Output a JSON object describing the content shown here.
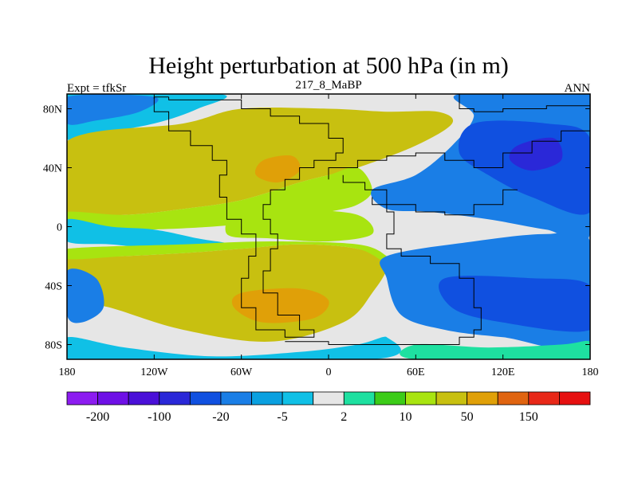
{
  "chart_data": {
    "type": "heatmap",
    "title": "Height perturbation at 500 hPa (in m)",
    "left_label": "Expt = tfkSr",
    "center_label": "217_8_MaBP",
    "right_label": "ANN",
    "x_ticks": [
      {
        "value": -180,
        "label": "180"
      },
      {
        "value": -120,
        "label": "120W"
      },
      {
        "value": -60,
        "label": "60W"
      },
      {
        "value": 0,
        "label": "0"
      },
      {
        "value": 60,
        "label": "60E"
      },
      {
        "value": 120,
        "label": "120E"
      },
      {
        "value": 180,
        "label": "180"
      }
    ],
    "y_ticks": [
      {
        "value": 80,
        "label": "80N"
      },
      {
        "value": 40,
        "label": "40N"
      },
      {
        "value": 0,
        "label": "0"
      },
      {
        "value": -40,
        "label": "40S"
      },
      {
        "value": -80,
        "label": "80S"
      }
    ],
    "xlim": [
      -180,
      180
    ],
    "ylim": [
      -90,
      90
    ],
    "colorbar": {
      "levels": [
        -200,
        -150,
        -100,
        -50,
        -20,
        -10,
        -5,
        -2,
        2,
        5,
        10,
        20,
        50,
        100,
        150,
        200
      ],
      "labeled": [
        {
          "index": 1,
          "label": "-200"
        },
        {
          "index": 3,
          "label": "-100"
        },
        {
          "index": 5,
          "label": "-20"
        },
        {
          "index": 7,
          "label": "-5"
        },
        {
          "index": 9,
          "label": "2"
        },
        {
          "index": 11,
          "label": "10"
        },
        {
          "index": 13,
          "label": "50"
        },
        {
          "index": 15,
          "label": "150"
        }
      ],
      "colors": [
        "#8c1cf0",
        "#6e10e6",
        "#4a10d8",
        "#2a28d8",
        "#1050e0",
        "#1a7ee6",
        "#0aa0e0",
        "#10c0e6",
        "#e6e6e6",
        "#1ee0a0",
        "#3ccc18",
        "#a8e410",
        "#c8c010",
        "#e0a008",
        "#e06410",
        "#e82818",
        "#e61010"
      ]
    },
    "regions": [
      {
        "name": "field-background",
        "color": "#e6e6e6",
        "points": [
          [
            -180,
            90
          ],
          [
            180,
            90
          ],
          [
            180,
            -90
          ],
          [
            -180,
            -90
          ]
        ]
      },
      {
        "name": "arctic-west-negative",
        "color": "#10c0e6",
        "points": [
          [
            -180,
            90
          ],
          [
            -75,
            90
          ],
          [
            -90,
            80
          ],
          [
            -120,
            70
          ],
          [
            -165,
            62
          ],
          [
            -180,
            60
          ]
        ]
      },
      {
        "name": "arctic-west-core",
        "color": "#1a7ee6",
        "points": [
          [
            -180,
            88
          ],
          [
            -120,
            88
          ],
          [
            -130,
            78
          ],
          [
            -160,
            72
          ],
          [
            -180,
            70
          ]
        ]
      },
      {
        "name": "west-pacific-low",
        "color": "#10c0e6",
        "points": [
          [
            -180,
            48
          ],
          [
            -150,
            45
          ],
          [
            -130,
            30
          ],
          [
            -145,
            22
          ],
          [
            -180,
            28
          ]
        ]
      },
      {
        "name": "west-pacific-low-core",
        "color": "#1050e0",
        "points": [
          [
            -180,
            40
          ],
          [
            -160,
            37
          ],
          [
            -150,
            28
          ],
          [
            -180,
            30
          ]
        ]
      },
      {
        "name": "north-high-band",
        "color": "#c8c010",
        "points": [
          [
            -180,
            58
          ],
          [
            -100,
            70
          ],
          [
            -60,
            80
          ],
          [
            0,
            80
          ],
          [
            40,
            78
          ],
          [
            75,
            78
          ],
          [
            85,
            70
          ],
          [
            60,
            55
          ],
          [
            20,
            40
          ],
          [
            0,
            35
          ],
          [
            -20,
            30
          ],
          [
            -60,
            18
          ],
          [
            -100,
            12
          ],
          [
            -140,
            8
          ],
          [
            -180,
            10
          ]
        ]
      },
      {
        "name": "north-high-edge",
        "color": "#a8e410",
        "points": [
          [
            -180,
            10
          ],
          [
            -140,
            8
          ],
          [
            -100,
            12
          ],
          [
            -60,
            18
          ],
          [
            -20,
            30
          ],
          [
            0,
            35
          ],
          [
            20,
            40
          ],
          [
            30,
            25
          ],
          [
            20,
            15
          ],
          [
            0,
            10
          ],
          [
            -30,
            5
          ],
          [
            -80,
            0
          ],
          [
            -140,
            -2
          ],
          [
            -180,
            2
          ]
        ]
      },
      {
        "name": "north-high-core",
        "color": "#e0a008",
        "points": [
          [
            -45,
            45
          ],
          [
            -25,
            48
          ],
          [
            -20,
            38
          ],
          [
            -35,
            30
          ],
          [
            -50,
            35
          ]
        ]
      },
      {
        "name": "central-plateau",
        "color": "#a8e410",
        "points": [
          [
            -60,
            15
          ],
          [
            -20,
            12
          ],
          [
            20,
            8
          ],
          [
            30,
            -5
          ],
          [
            0,
            -10
          ],
          [
            -40,
            -8
          ],
          [
            -70,
            -5
          ]
        ]
      },
      {
        "name": "tropical-pacific-negative",
        "color": "#10c0e6",
        "points": [
          [
            -180,
            5
          ],
          [
            -150,
            0
          ],
          [
            -120,
            -2
          ],
          [
            -90,
            -8
          ],
          [
            -70,
            -12
          ],
          [
            -110,
            -15
          ],
          [
            -150,
            -12
          ],
          [
            -180,
            -10
          ]
        ]
      },
      {
        "name": "east-pacific-high",
        "color": "#1a7ee6",
        "points": [
          [
            90,
            90
          ],
          [
            180,
            90
          ],
          [
            180,
            -5
          ],
          [
            150,
            -2
          ],
          [
            110,
            5
          ],
          [
            70,
            10
          ],
          [
            40,
            12
          ],
          [
            30,
            25
          ],
          [
            60,
            35
          ],
          [
            85,
            55
          ],
          [
            100,
            75
          ]
        ]
      },
      {
        "name": "east-high-core",
        "color": "#1050e0",
        "points": [
          [
            100,
            70
          ],
          [
            150,
            70
          ],
          [
            180,
            60
          ],
          [
            180,
            10
          ],
          [
            140,
            20
          ],
          [
            110,
            35
          ],
          [
            90,
            50
          ]
        ]
      },
      {
        "name": "east-low-core",
        "color": "#2a28d8",
        "points": [
          [
            130,
            55
          ],
          [
            155,
            60
          ],
          [
            160,
            45
          ],
          [
            140,
            38
          ],
          [
            125,
            45
          ]
        ]
      },
      {
        "name": "south-high-band",
        "color": "#c8c010",
        "points": [
          [
            -180,
            -22
          ],
          [
            -140,
            -20
          ],
          [
            -100,
            -18
          ],
          [
            -60,
            -15
          ],
          [
            -20,
            -12
          ],
          [
            20,
            -15
          ],
          [
            40,
            -25
          ],
          [
            30,
            -45
          ],
          [
            10,
            -65
          ],
          [
            -40,
            -78
          ],
          [
            -100,
            -70
          ],
          [
            -150,
            -55
          ],
          [
            -180,
            -48
          ]
        ]
      },
      {
        "name": "south-high-edge",
        "color": "#a8e410",
        "points": [
          [
            -180,
            -15
          ],
          [
            -100,
            -12
          ],
          [
            -40,
            -10
          ],
          [
            20,
            -12
          ],
          [
            40,
            -20
          ],
          [
            40,
            -25
          ],
          [
            20,
            -15
          ],
          [
            -20,
            -12
          ],
          [
            -60,
            -15
          ],
          [
            -100,
            -18
          ],
          [
            -140,
            -20
          ],
          [
            -180,
            -22
          ]
        ]
      },
      {
        "name": "south-high-core",
        "color": "#e0a008",
        "points": [
          [
            -60,
            -45
          ],
          [
            -20,
            -42
          ],
          [
            0,
            -50
          ],
          [
            -10,
            -62
          ],
          [
            -45,
            -65
          ],
          [
            -65,
            -55
          ]
        ]
      },
      {
        "name": "southern-ocean-negative",
        "color": "#1a7ee6",
        "points": [
          [
            40,
            -20
          ],
          [
            100,
            -10
          ],
          [
            150,
            -5
          ],
          [
            180,
            -10
          ],
          [
            180,
            -80
          ],
          [
            120,
            -75
          ],
          [
            80,
            -70
          ],
          [
            50,
            -60
          ],
          [
            40,
            -35
          ]
        ]
      },
      {
        "name": "southern-ocean-core",
        "color": "#1050e0",
        "points": [
          [
            80,
            -35
          ],
          [
            140,
            -35
          ],
          [
            180,
            -40
          ],
          [
            180,
            -70
          ],
          [
            120,
            -65
          ],
          [
            85,
            -55
          ]
        ]
      },
      {
        "name": "antarctic-negative",
        "color": "#10c0e6",
        "points": [
          [
            -180,
            -75
          ],
          [
            -140,
            -82
          ],
          [
            -80,
            -88
          ],
          [
            -20,
            -85
          ],
          [
            20,
            -80
          ],
          [
            40,
            -75
          ],
          [
            30,
            -90
          ],
          [
            -180,
            -90
          ]
        ]
      },
      {
        "name": "south-west-negative",
        "color": "#1a7ee6",
        "points": [
          [
            -180,
            -30
          ],
          [
            -160,
            -35
          ],
          [
            -155,
            -55
          ],
          [
            -170,
            -65
          ],
          [
            -180,
            -60
          ]
        ]
      },
      {
        "name": "antarctic-positive-east",
        "color": "#1ee0a0",
        "points": [
          [
            60,
            -80
          ],
          [
            110,
            -82
          ],
          [
            160,
            -80
          ],
          [
            180,
            -78
          ],
          [
            180,
            -90
          ],
          [
            60,
            -90
          ]
        ]
      }
    ],
    "outlines": [
      [
        [
          -110,
          88
        ],
        [
          -60,
          86
        ],
        [
          -40,
          80
        ],
        [
          -20,
          75
        ],
        [
          0,
          70
        ],
        [
          10,
          60
        ],
        [
          5,
          50
        ],
        [
          -10,
          45
        ],
        [
          -20,
          40
        ],
        [
          -30,
          32
        ],
        [
          -40,
          25
        ],
        [
          -45,
          15
        ],
        [
          -40,
          5
        ],
        [
          -35,
          -5
        ],
        [
          -40,
          -15
        ],
        [
          -45,
          -30
        ],
        [
          -35,
          -45
        ],
        [
          -20,
          -60
        ],
        [
          -10,
          -70
        ],
        [
          -30,
          -75
        ],
        [
          -50,
          -70
        ],
        [
          -60,
          -55
        ],
        [
          -55,
          -35
        ],
        [
          -50,
          -20
        ],
        [
          -60,
          -5
        ],
        [
          -70,
          5
        ],
        [
          -75,
          20
        ],
        [
          -70,
          35
        ],
        [
          -80,
          45
        ],
        [
          -95,
          55
        ],
        [
          -110,
          65
        ],
        [
          -120,
          78
        ],
        [
          -110,
          88
        ]
      ],
      [
        [
          10,
          35
        ],
        [
          25,
          30
        ],
        [
          40,
          25
        ],
        [
          45,
          10
        ],
        [
          40,
          -5
        ],
        [
          50,
          -15
        ],
        [
          70,
          -20
        ],
        [
          90,
          -25
        ],
        [
          100,
          -35
        ],
        [
          105,
          -55
        ],
        [
          100,
          -70
        ],
        [
          90,
          -75
        ],
        [
          60,
          -80
        ],
        [
          0,
          -80
        ],
        [
          -30,
          -78
        ]
      ],
      [
        [
          0,
          32
        ],
        [
          20,
          40
        ],
        [
          40,
          45
        ],
        [
          60,
          48
        ],
        [
          80,
          50
        ],
        [
          100,
          45
        ],
        [
          120,
          40
        ],
        [
          140,
          50
        ],
        [
          160,
          58
        ],
        [
          180,
          65
        ]
      ],
      [
        [
          90,
          90
        ],
        [
          100,
          80
        ],
        [
          120,
          78
        ],
        [
          150,
          80
        ],
        [
          180,
          82
        ]
      ],
      [
        [
          30,
          20
        ],
        [
          60,
          15
        ],
        [
          80,
          10
        ],
        [
          100,
          8
        ],
        [
          120,
          15
        ],
        [
          130,
          25
        ]
      ]
    ]
  }
}
